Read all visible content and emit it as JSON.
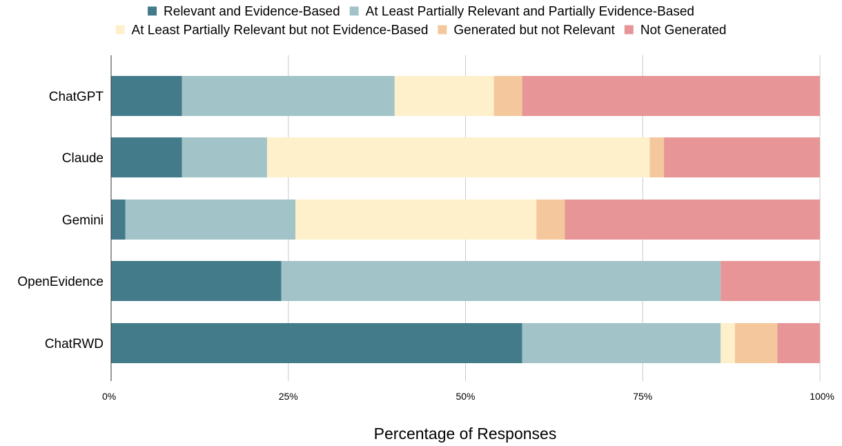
{
  "chart_data": {
    "type": "bar",
    "orientation": "horizontal",
    "stacked": true,
    "categories": [
      "ChatGPT",
      "Claude",
      "Gemini",
      "OpenEvidence",
      "ChatRWD"
    ],
    "series": [
      {
        "name": "Relevant and Evidence-Based",
        "color": "#437b8a",
        "values": [
          10,
          10,
          2,
          24,
          58
        ]
      },
      {
        "name": "At Least Partially Relevant and Partially Evidence-Based",
        "color": "#a2c3c7",
        "values": [
          30,
          12,
          24,
          62,
          28
        ]
      },
      {
        "name": "At Least Partially Relevant but not Evidence-Based",
        "color": "#fdf0cb",
        "values": [
          14,
          54,
          34,
          0,
          2
        ]
      },
      {
        "name": "Generated but not Relevant",
        "color": "#f4c89c",
        "values": [
          4,
          2,
          4,
          0,
          6
        ]
      },
      {
        "name": "Not Generated",
        "color": "#e79596",
        "values": [
          42,
          22,
          36,
          14,
          6
        ]
      }
    ],
    "xlabel": "Percentage of Responses",
    "ylabel": "",
    "xlim": [
      0,
      100
    ],
    "xticks": [
      {
        "value": 0,
        "label": "0%"
      },
      {
        "value": 25,
        "label": "25%"
      },
      {
        "value": 50,
        "label": "50%"
      },
      {
        "value": 75,
        "label": "75%"
      },
      {
        "value": 100,
        "label": "100%"
      }
    ],
    "grid": true,
    "legend_position": "top"
  }
}
